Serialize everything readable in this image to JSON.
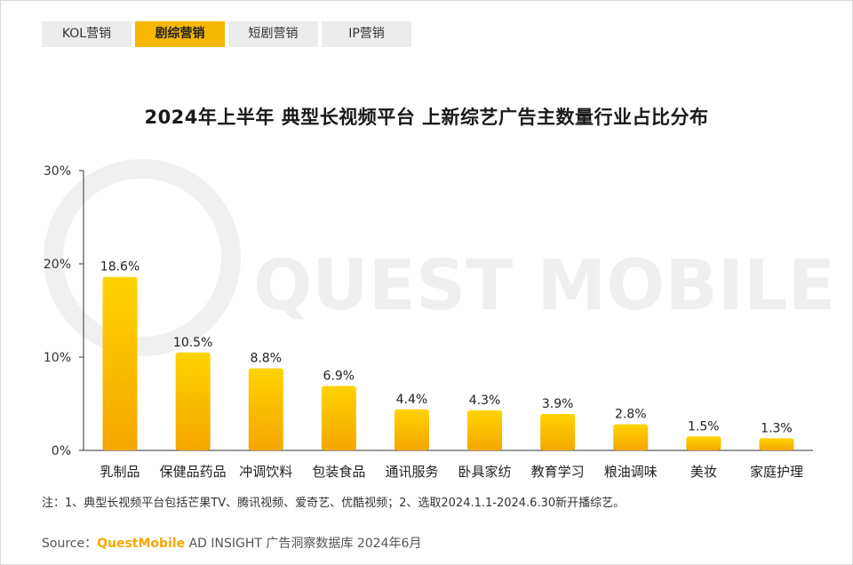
{
  "tabs": [
    {
      "label": "KOL营销",
      "active": false
    },
    {
      "label": "剧综营销",
      "active": true
    },
    {
      "label": "短剧营销",
      "active": false
    },
    {
      "label": "IP营销",
      "active": false
    }
  ],
  "watermark": "QUEST MOBILE",
  "note": "注：1、典型长视频平台包括芒果TV、腾讯视频、爱奇艺、优酷视频；2、选取2024.1.1-2024.6.30新开播综艺。",
  "source": {
    "prefix": "Source：",
    "brand": "QuestMobile",
    "rest": " AD INSIGHT 广告洞察数据库 2024年6月"
  },
  "colors": {
    "bar_top": "#ffd400",
    "bar_bottom": "#f5a600",
    "tab_active": "#f6b800"
  },
  "chart_data": {
    "type": "bar",
    "title": "2024年上半年 典型长视频平台 上新综艺广告主数量行业占比分布",
    "xlabel": "",
    "ylabel": "",
    "categories": [
      "乳制品",
      "保健品药品",
      "冲调饮料",
      "包装食品",
      "通讯服务",
      "卧具家纺",
      "教育学习",
      "粮油调味",
      "美妆",
      "家庭护理"
    ],
    "values": [
      18.6,
      10.5,
      8.8,
      6.9,
      4.4,
      4.3,
      3.9,
      2.8,
      1.5,
      1.3
    ],
    "data_labels": [
      "18.6%",
      "10.5%",
      "8.8%",
      "6.9%",
      "4.4%",
      "4.3%",
      "3.9%",
      "2.8%",
      "1.5%",
      "1.3%"
    ],
    "ylim": [
      0,
      30
    ],
    "yticks": [
      0,
      10,
      20,
      30
    ],
    "ytick_labels": [
      "0%",
      "10%",
      "20%",
      "30%"
    ],
    "grid": false,
    "legend": "none"
  }
}
